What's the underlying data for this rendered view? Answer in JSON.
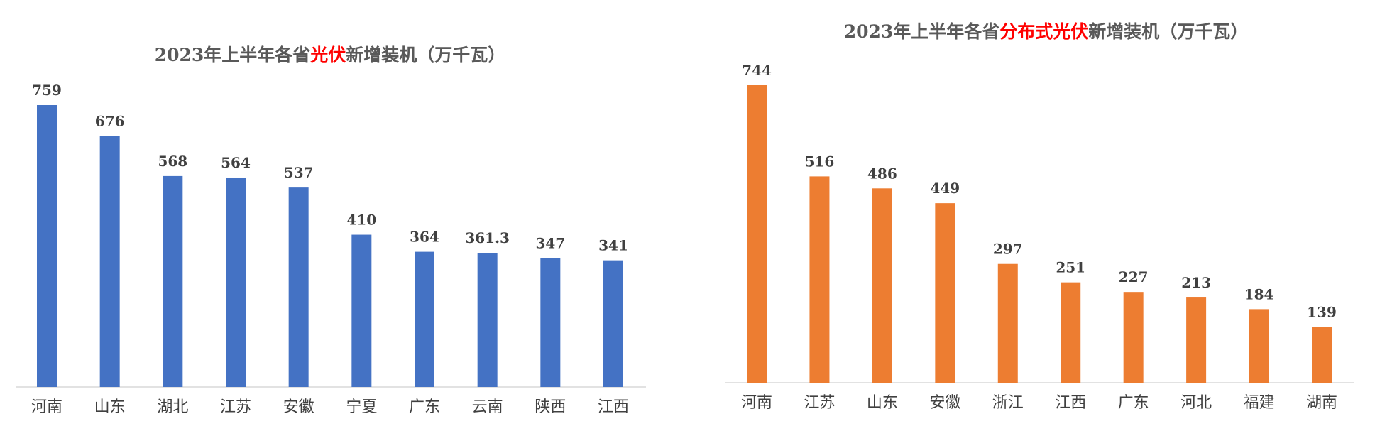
{
  "chart_data": [
    {
      "type": "bar",
      "title_parts": [
        "2023年上半年各省",
        "光伏",
        "新增装机（万千瓦）"
      ],
      "title": "2023年上半年各省光伏新增装机（万千瓦）",
      "categories": [
        "河南",
        "山东",
        "湖北",
        "江苏",
        "安徽",
        "宁夏",
        "广东",
        "云南",
        "陕西",
        "江西"
      ],
      "values": [
        759,
        676,
        568,
        564,
        537,
        410,
        364,
        361.3,
        347,
        341
      ],
      "data_labels": [
        "759",
        "676",
        "568",
        "564",
        "537",
        "410",
        "364",
        "361.3",
        "347",
        "341"
      ],
      "bar_color": "#4472C4",
      "highlight_color": "#FF0000",
      "ylim": [
        0,
        800
      ],
      "grid": false,
      "legend": "none"
    },
    {
      "type": "bar",
      "title_parts": [
        "2023年上半年各省",
        "分布式光伏",
        "新增装机（万千瓦）"
      ],
      "title": "2023年上半年各省分布式光伏新增装机（万千瓦）",
      "categories": [
        "河南",
        "江苏",
        "山东",
        "安徽",
        "浙江",
        "江西",
        "广东",
        "河北",
        "福建",
        "湖南"
      ],
      "values": [
        744,
        516,
        486,
        449,
        297,
        251,
        227,
        213,
        184,
        139
      ],
      "data_labels": [
        "744",
        "516",
        "486",
        "449",
        "297",
        "251",
        "227",
        "213",
        "184",
        "139"
      ],
      "bar_color": "#ED7D31",
      "highlight_color": "#FF0000",
      "ylim": [
        0,
        800
      ],
      "grid": false,
      "legend": "none"
    }
  ]
}
